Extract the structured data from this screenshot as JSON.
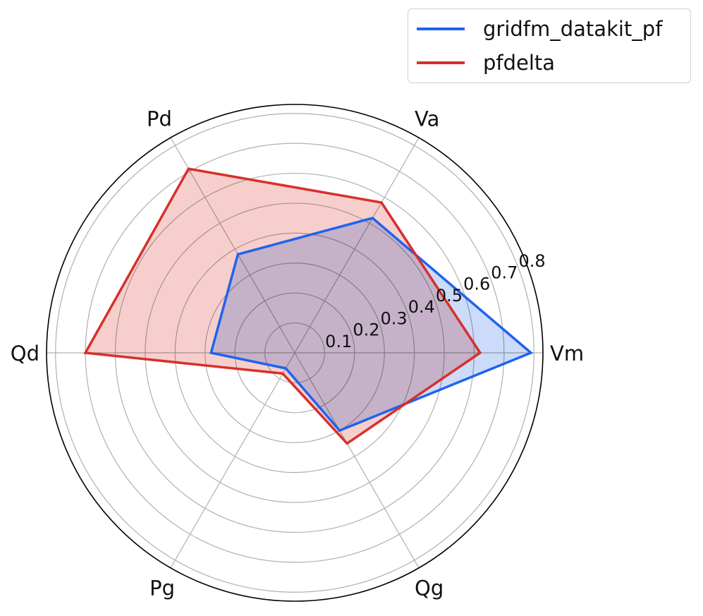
{
  "chart_data": {
    "type": "radar",
    "categories": [
      "Vm",
      "Va",
      "Pd",
      "Qd",
      "Pg",
      "Qg"
    ],
    "series": [
      {
        "name": "gridfm_datakit_pf",
        "values": [
          0.79,
          0.52,
          0.38,
          0.28,
          0.06,
          0.3
        ],
        "color": "#1f63f0",
        "fill": "#c3d5f8"
      },
      {
        "name": "pfdelta",
        "values": [
          0.62,
          0.58,
          0.71,
          0.7,
          0.08,
          0.35
        ],
        "color": "#d7302a",
        "fill": "#f5c7c4"
      }
    ],
    "radial_ticks": [
      "0.1",
      "0.2",
      "0.3",
      "0.4",
      "0.5",
      "0.6",
      "0.7",
      "0.8"
    ],
    "rlim": [
      0,
      0.83
    ],
    "grid": true,
    "legend_position": "top-right"
  }
}
